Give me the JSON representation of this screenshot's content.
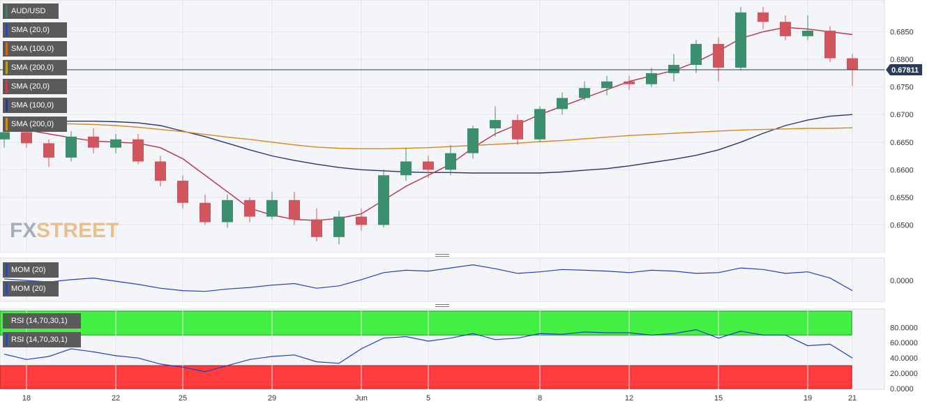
{
  "legends": [
    {
      "label": "AUD/USD",
      "color": "#4a7a6a"
    },
    {
      "label": "SMA (20,0)",
      "color": "#2b4aa8"
    },
    {
      "label": "SMA (100,0)",
      "color": "#c86a20"
    },
    {
      "label": "SMA (200,0)",
      "color": "#b8a020"
    },
    {
      "label": "SMA (20,0)",
      "color": "#c04050"
    },
    {
      "label": "SMA (100,0)",
      "color": "#2a3a7a"
    },
    {
      "label": "SMA (200,0)",
      "color": "#d08a20"
    }
  ],
  "mom_legends": [
    {
      "label": "MOM (20)",
      "color": "#2b4aa8"
    },
    {
      "label": "MOM (20)",
      "color": "#2b4aa8"
    }
  ],
  "rsi_legends": [
    {
      "label": "RSI (14,70,30,1)",
      "color": "#208020"
    },
    {
      "label": "RSI (14,70,30,1)",
      "color": "#2b4aa8"
    }
  ],
  "price_tag": "0.67811",
  "watermark": {
    "fx": "FX",
    "street": "STREET"
  },
  "colors": {
    "up": "#3b8f6c",
    "down": "#d0555c",
    "sma20": "#b8304a",
    "sma100": "#2a3570",
    "sma200": "#d4881e",
    "mom": "#1f3fc0",
    "rsi": "#1f3fc0",
    "overbought": "#44f044",
    "oversold": "#ff3b3b",
    "price_line": "#2a3a5a"
  },
  "chart_data": {
    "type": "candlestick",
    "x_labels": [
      {
        "label": "18",
        "i": 1
      },
      {
        "label": "22",
        "i": 5
      },
      {
        "label": "25",
        "i": 8
      },
      {
        "label": "29",
        "i": 12
      },
      {
        "label": "Jun",
        "i": 16
      },
      {
        "label": "5",
        "i": 19
      },
      {
        "label": "8",
        "i": 24
      },
      {
        "label": "12",
        "i": 28
      },
      {
        "label": "15",
        "i": 32
      },
      {
        "label": "19",
        "i": 36
      },
      {
        "label": "21",
        "i": 38
      }
    ],
    "price_axis": {
      "ticks": [
        "0.6850",
        "0.6800",
        "0.6750",
        "0.6700",
        "0.6650",
        "0.6600",
        "0.6550",
        "0.6500"
      ],
      "range": [
        0.6455,
        0.69
      ]
    },
    "mom_axis": {
      "ticks": [
        "0.0000"
      ],
      "range": [
        -0.025,
        0.025
      ]
    },
    "rsi_axis": {
      "ticks": [
        "80.0000",
        "60.0000",
        "40.0000",
        "20.0000",
        "0.0000"
      ],
      "range": [
        0,
        100
      ],
      "overbought": 70,
      "oversold": 30
    },
    "current_price": 0.67811,
    "sma20": [
      0.668,
      0.6672,
      0.6665,
      0.6658,
      0.6652,
      0.665,
      0.6648,
      0.664,
      0.662,
      0.659,
      0.656,
      0.653,
      0.6518,
      0.651,
      0.6508,
      0.6512,
      0.652,
      0.6545,
      0.657,
      0.659,
      0.661,
      0.664,
      0.6665,
      0.6682,
      0.67,
      0.6715,
      0.673,
      0.6745,
      0.676,
      0.677,
      0.678,
      0.6795,
      0.6815,
      0.6838,
      0.685,
      0.6858,
      0.6855,
      0.685,
      0.6845
    ],
    "sma100": [
      0.6684,
      0.6685,
      0.6687,
      0.6688,
      0.6688,
      0.6687,
      0.6685,
      0.668,
      0.667,
      0.666,
      0.6648,
      0.6636,
      0.6625,
      0.6617,
      0.661,
      0.6604,
      0.66,
      0.6598,
      0.6596,
      0.6595,
      0.6595,
      0.6594,
      0.6594,
      0.6594,
      0.6594,
      0.6596,
      0.6599,
      0.6602,
      0.6607,
      0.6613,
      0.6619,
      0.6626,
      0.6636,
      0.665,
      0.6666,
      0.668,
      0.669,
      0.6697,
      0.67
    ],
    "sma200": [
      0.6681,
      0.6682,
      0.6683,
      0.6683,
      0.6682,
      0.668,
      0.6677,
      0.6673,
      0.6669,
      0.6664,
      0.6659,
      0.6655,
      0.665,
      0.6645,
      0.6641,
      0.6639,
      0.6638,
      0.6638,
      0.6639,
      0.664,
      0.6642,
      0.6644,
      0.6646,
      0.6648,
      0.6651,
      0.6653,
      0.6656,
      0.6659,
      0.6662,
      0.6664,
      0.6666,
      0.6668,
      0.667,
      0.6672,
      0.6673,
      0.6674,
      0.6675,
      0.6675,
      0.6676
    ],
    "candles": [
      {
        "o": 0.6655,
        "h": 0.6672,
        "l": 0.664,
        "c": 0.6668
      },
      {
        "o": 0.6668,
        "h": 0.6675,
        "l": 0.664,
        "c": 0.6648
      },
      {
        "o": 0.6648,
        "h": 0.6655,
        "l": 0.6605,
        "c": 0.6622
      },
      {
        "o": 0.6622,
        "h": 0.667,
        "l": 0.6615,
        "c": 0.666
      },
      {
        "o": 0.666,
        "h": 0.6675,
        "l": 0.663,
        "c": 0.664
      },
      {
        "o": 0.664,
        "h": 0.6665,
        "l": 0.663,
        "c": 0.6655
      },
      {
        "o": 0.6655,
        "h": 0.6665,
        "l": 0.661,
        "c": 0.6615
      },
      {
        "o": 0.6615,
        "h": 0.6625,
        "l": 0.657,
        "c": 0.658
      },
      {
        "o": 0.658,
        "h": 0.659,
        "l": 0.653,
        "c": 0.654
      },
      {
        "o": 0.654,
        "h": 0.6555,
        "l": 0.65,
        "c": 0.6505
      },
      {
        "o": 0.6505,
        "h": 0.6555,
        "l": 0.6495,
        "c": 0.6545
      },
      {
        "o": 0.6545,
        "h": 0.655,
        "l": 0.6505,
        "c": 0.6515
      },
      {
        "o": 0.6515,
        "h": 0.656,
        "l": 0.651,
        "c": 0.6545
      },
      {
        "o": 0.6545,
        "h": 0.656,
        "l": 0.65,
        "c": 0.651
      },
      {
        "o": 0.651,
        "h": 0.653,
        "l": 0.647,
        "c": 0.6478
      },
      {
        "o": 0.6478,
        "h": 0.6525,
        "l": 0.6465,
        "c": 0.6515
      },
      {
        "o": 0.6515,
        "h": 0.653,
        "l": 0.649,
        "c": 0.65
      },
      {
        "o": 0.65,
        "h": 0.66,
        "l": 0.6495,
        "c": 0.659
      },
      {
        "o": 0.659,
        "h": 0.664,
        "l": 0.658,
        "c": 0.6615
      },
      {
        "o": 0.6615,
        "h": 0.6625,
        "l": 0.6585,
        "c": 0.66
      },
      {
        "o": 0.66,
        "h": 0.6645,
        "l": 0.659,
        "c": 0.663
      },
      {
        "o": 0.663,
        "h": 0.668,
        "l": 0.662,
        "c": 0.6675
      },
      {
        "o": 0.6675,
        "h": 0.6715,
        "l": 0.666,
        "c": 0.669
      },
      {
        "o": 0.669,
        "h": 0.67,
        "l": 0.6645,
        "c": 0.6655
      },
      {
        "o": 0.6655,
        "h": 0.6715,
        "l": 0.665,
        "c": 0.671
      },
      {
        "o": 0.671,
        "h": 0.674,
        "l": 0.67,
        "c": 0.673
      },
      {
        "o": 0.673,
        "h": 0.676,
        "l": 0.6725,
        "c": 0.6748
      },
      {
        "o": 0.6748,
        "h": 0.677,
        "l": 0.6735,
        "c": 0.676
      },
      {
        "o": 0.676,
        "h": 0.677,
        "l": 0.6745,
        "c": 0.6755
      },
      {
        "o": 0.6755,
        "h": 0.6785,
        "l": 0.675,
        "c": 0.6775
      },
      {
        "o": 0.6775,
        "h": 0.681,
        "l": 0.676,
        "c": 0.679
      },
      {
        "o": 0.679,
        "h": 0.6835,
        "l": 0.6775,
        "c": 0.6828
      },
      {
        "o": 0.6828,
        "h": 0.684,
        "l": 0.676,
        "c": 0.6785
      },
      {
        "o": 0.6785,
        "h": 0.6895,
        "l": 0.678,
        "c": 0.6885
      },
      {
        "o": 0.6885,
        "h": 0.6895,
        "l": 0.6855,
        "c": 0.6868
      },
      {
        "o": 0.6868,
        "h": 0.688,
        "l": 0.6835,
        "c": 0.6842
      },
      {
        "o": 0.6842,
        "h": 0.688,
        "l": 0.6835,
        "c": 0.6852
      },
      {
        "o": 0.6852,
        "h": 0.686,
        "l": 0.6795,
        "c": 0.6802
      },
      {
        "o": 0.6802,
        "h": 0.681,
        "l": 0.6752,
        "c": 0.6781
      }
    ],
    "mom": [
      0.002,
      0.0,
      -0.002,
      0.001,
      0.003,
      -0.001,
      -0.005,
      -0.01,
      -0.013,
      -0.014,
      -0.011,
      -0.009,
      -0.006,
      -0.004,
      -0.01,
      -0.007,
      0.001,
      0.01,
      0.013,
      0.012,
      0.016,
      0.02,
      0.015,
      0.009,
      0.011,
      0.014,
      0.013,
      0.012,
      0.01,
      0.013,
      0.012,
      0.009,
      0.01,
      0.016,
      0.014,
      0.009,
      0.011,
      0.003,
      -0.013
    ],
    "rsi": [
      45,
      38,
      42,
      52,
      48,
      43,
      40,
      32,
      28,
      22,
      30,
      38,
      42,
      44,
      35,
      33,
      52,
      66,
      68,
      62,
      66,
      72,
      64,
      66,
      72,
      71,
      74,
      73,
      73,
      70,
      72,
      77,
      66,
      75,
      70,
      70,
      56,
      58,
      40
    ]
  }
}
